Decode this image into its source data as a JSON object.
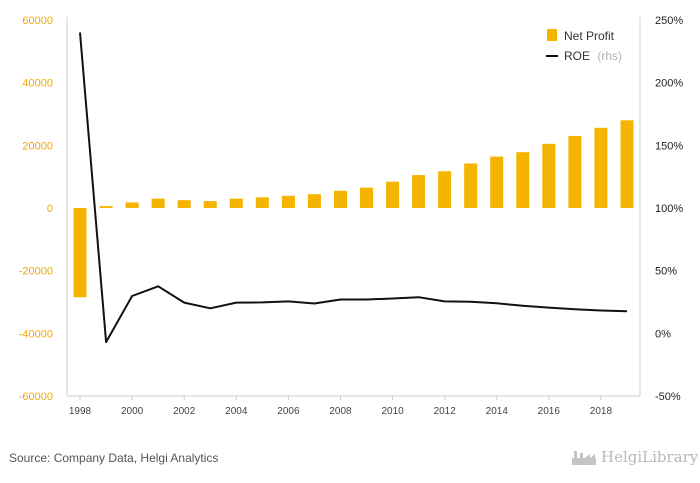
{
  "chart_data": {
    "type": "bar",
    "x": [
      "1998",
      "1999",
      "2000",
      "2001",
      "2002",
      "2003",
      "2004",
      "2005",
      "2006",
      "2007",
      "2008",
      "2009",
      "2010",
      "2011",
      "2012",
      "2013",
      "2014",
      "2015",
      "2016",
      "2017",
      "2018",
      "2019"
    ],
    "x_tick_labels": [
      "1998",
      "2000",
      "2002",
      "2004",
      "2006",
      "2008",
      "2010",
      "2012",
      "2014",
      "2016",
      "2018"
    ],
    "series": [
      {
        "name": "Net Profit",
        "type": "bar",
        "axis": "left",
        "color": "#f5b400",
        "values": [
          -28500,
          600,
          1800,
          3000,
          2500,
          2200,
          3000,
          3400,
          3900,
          4400,
          5500,
          6500,
          8400,
          10500,
          11700,
          14200,
          16400,
          17800,
          20500,
          23000,
          25600,
          28000
        ]
      },
      {
        "name": "ROE",
        "name_suffix": "(rhs)",
        "type": "line",
        "axis": "right",
        "color": "#111111",
        "values": [
          240,
          -7,
          29.8,
          37.5,
          24.5,
          20,
          24.5,
          24.7,
          25.5,
          23.8,
          27,
          27,
          27.8,
          28.8,
          25.5,
          25.2,
          24,
          22,
          20.5,
          19.2,
          18.2,
          17.6
        ]
      }
    ],
    "y_left": {
      "ylim": [
        -60000,
        60000
      ],
      "ticks": [
        "60000",
        "40000",
        "20000",
        "0",
        "-20000",
        "-40000",
        "-60000"
      ]
    },
    "y_right": {
      "ylim": [
        -50,
        250
      ],
      "ticks": [
        "250%",
        "200%",
        "150%",
        "100%",
        "50%",
        "0%",
        "-50%"
      ]
    },
    "legend": {
      "position": "top-right"
    },
    "grid": false,
    "title": "",
    "xlabel": "",
    "ylabel": ""
  },
  "footer": {
    "source": "Source: Company Data, Helgi Analytics",
    "logo_text": "HelgiLibrary",
    "logo_icon": "factory-icon"
  }
}
